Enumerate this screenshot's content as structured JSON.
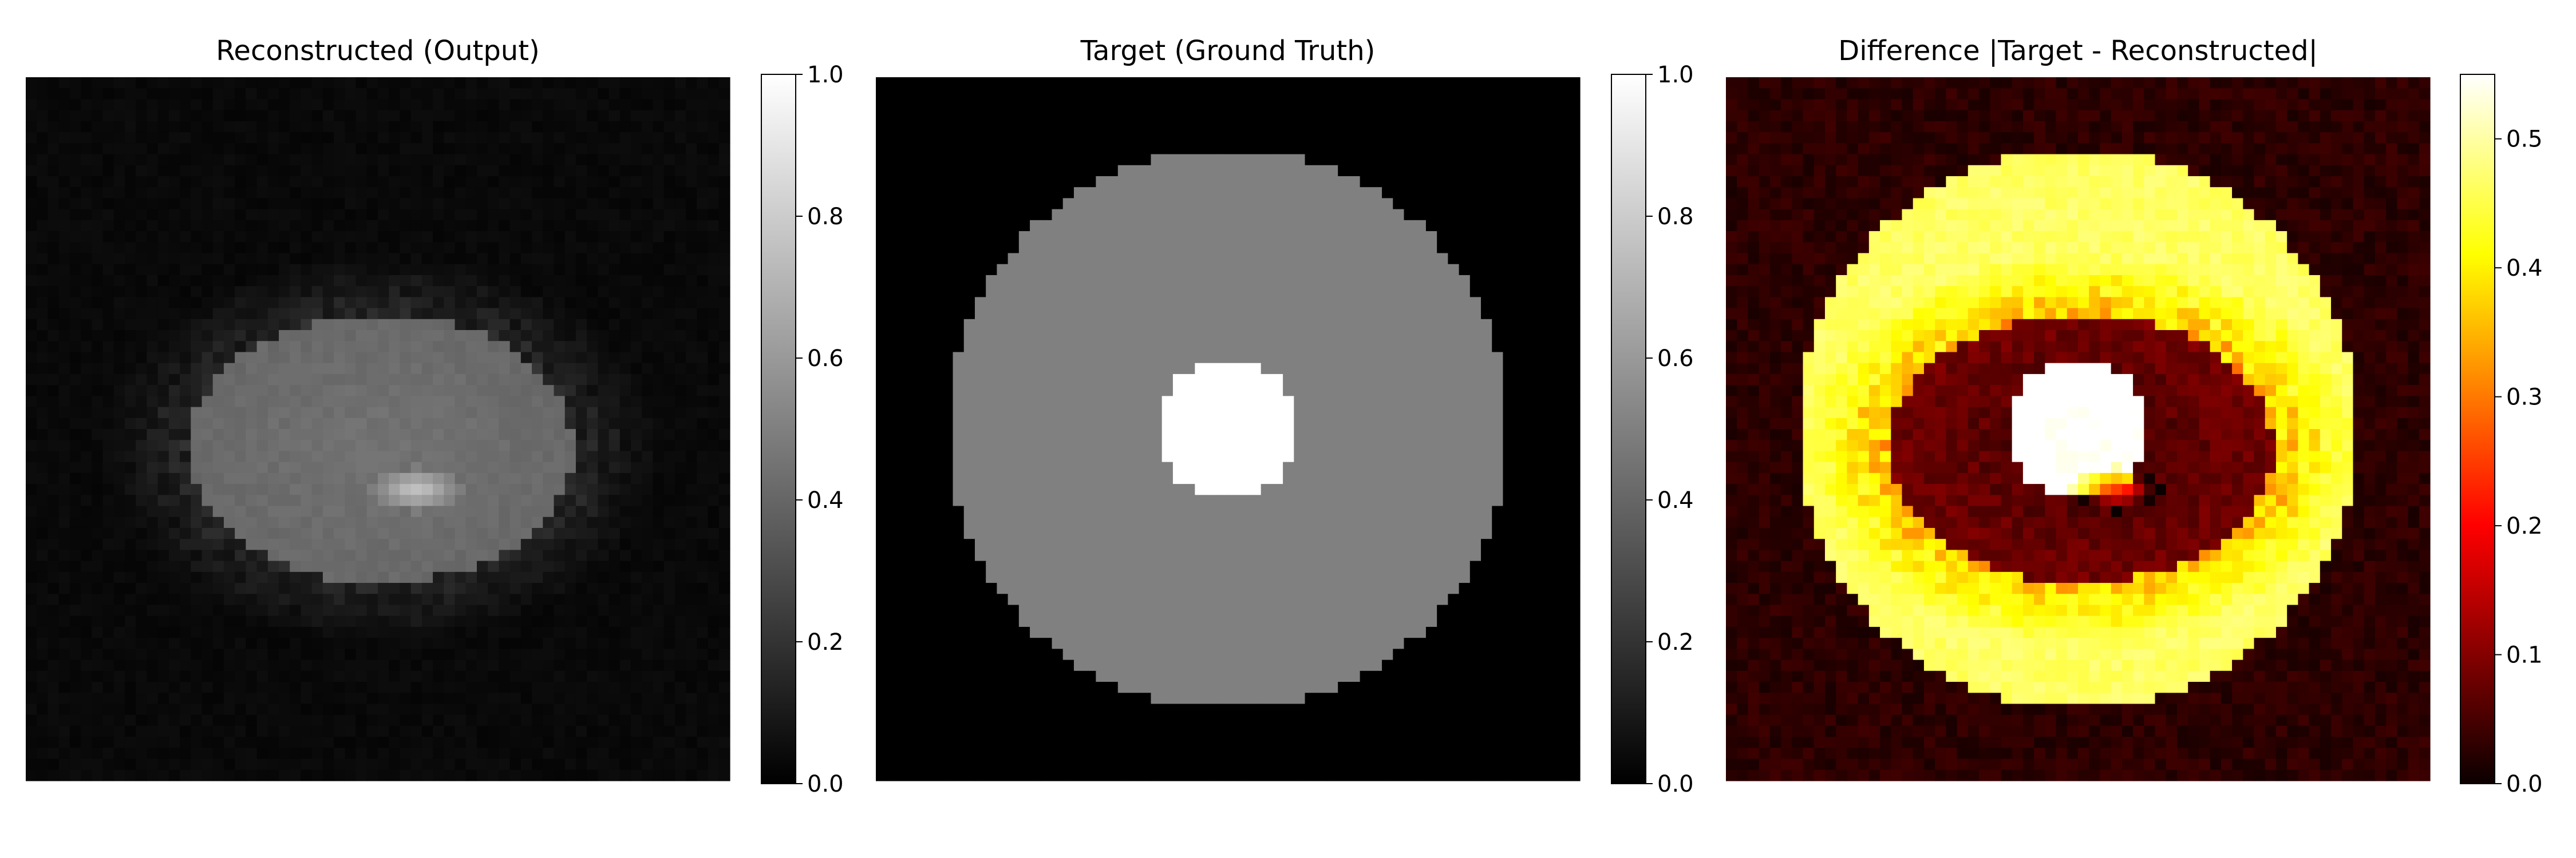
{
  "chart_data": [
    {
      "type": "heatmap",
      "title": "Reconstructed (Output)",
      "colormap": "gray",
      "colorbar": {
        "min": 0.0,
        "max": 1.0,
        "ticks": [
          "0.0",
          "0.2",
          "0.4",
          "0.6",
          "0.8",
          "1.0"
        ]
      },
      "grid": false,
      "image": {
        "background": 0.02,
        "description_values": {
          "ellipse_interior": 0.45,
          "bright_spot": 0.75,
          "noisy_halo": 0.12
        }
      }
    },
    {
      "type": "heatmap",
      "title": "Target (Ground Truth)",
      "colormap": "gray",
      "colorbar": {
        "min": 0.0,
        "max": 1.0,
        "ticks": [
          "0.0",
          "0.2",
          "0.4",
          "0.6",
          "0.8",
          "1.0"
        ]
      },
      "grid": false,
      "image": {
        "background": 0.0,
        "description_values": {
          "outer_disk": 0.5,
          "inner_disk": 1.0
        }
      }
    },
    {
      "type": "heatmap",
      "title": "Difference |Target - Reconstructed|",
      "colormap": "hot",
      "colorbar": {
        "min": 0.0,
        "max": 0.55,
        "ticks": [
          "0.0",
          "0.1",
          "0.2",
          "0.3",
          "0.4",
          "0.5"
        ]
      },
      "grid": false,
      "image": {
        "background": 0.02,
        "description_values": {
          "outer_ring": 0.5,
          "reconstructed_ellipse": 0.05,
          "inner_disk": 0.53
        }
      }
    }
  ]
}
